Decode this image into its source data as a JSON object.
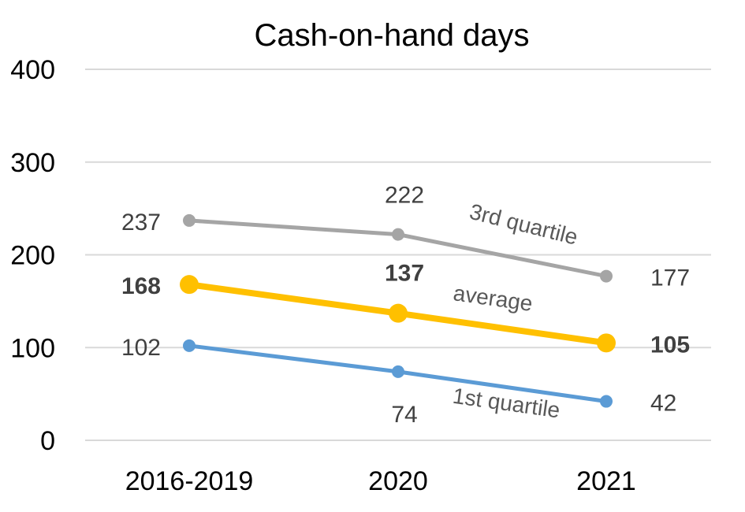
{
  "chart_data": {
    "type": "line",
    "title": "Cash-on-hand days",
    "xlabel": "",
    "ylabel": "",
    "categories": [
      "2016-2019",
      "2020",
      "2021"
    ],
    "ylim": [
      0,
      400
    ],
    "yticks": [
      0,
      100,
      200,
      300,
      400
    ],
    "grid": true,
    "legend": "none (series labels placed inline on lines)",
    "series": [
      {
        "name": "3rd quartile",
        "values": [
          237,
          222,
          177
        ],
        "labels": [
          "237",
          "222",
          "177"
        ],
        "color": "#a5a5a5",
        "bold_labels": false
      },
      {
        "name": "average",
        "values": [
          168,
          137,
          105
        ],
        "labels": [
          "168",
          "137",
          "105"
        ],
        "color": "#ffc000",
        "bold_labels": true
      },
      {
        "name": "1st quartile",
        "values": [
          102,
          74,
          42
        ],
        "labels": [
          "102",
          "74",
          "42"
        ],
        "color": "#5b9bd5",
        "bold_labels": false
      }
    ]
  }
}
